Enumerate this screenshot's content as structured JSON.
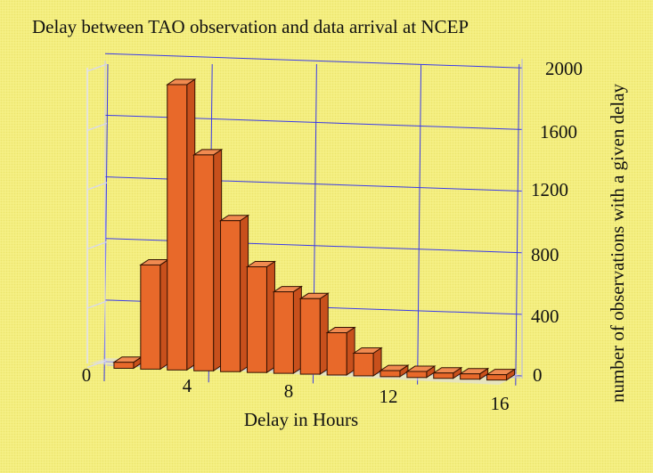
{
  "chart_data": {
    "type": "bar",
    "title": "Delay between TAO observation and data arrival at NCEP",
    "xlabel": "Delay in Hours",
    "ylabel": "number of observations with a given delay",
    "x_ticks": [
      "0",
      "4",
      "8",
      "12",
      "16"
    ],
    "y_ticks": [
      "0",
      "400",
      "800",
      "1200",
      "1600",
      "2000"
    ],
    "ylim": [
      0,
      2000
    ],
    "xlim": [
      0,
      16
    ],
    "grid": true,
    "bar_color": "#e8692a",
    "categories": [
      1,
      2,
      3,
      4,
      5,
      6,
      7,
      8,
      9,
      10,
      11,
      12,
      13,
      14,
      15
    ],
    "values": [
      40,
      690,
      1890,
      1430,
      1000,
      700,
      540,
      500,
      280,
      150,
      40,
      40,
      20,
      20,
      0
    ]
  }
}
